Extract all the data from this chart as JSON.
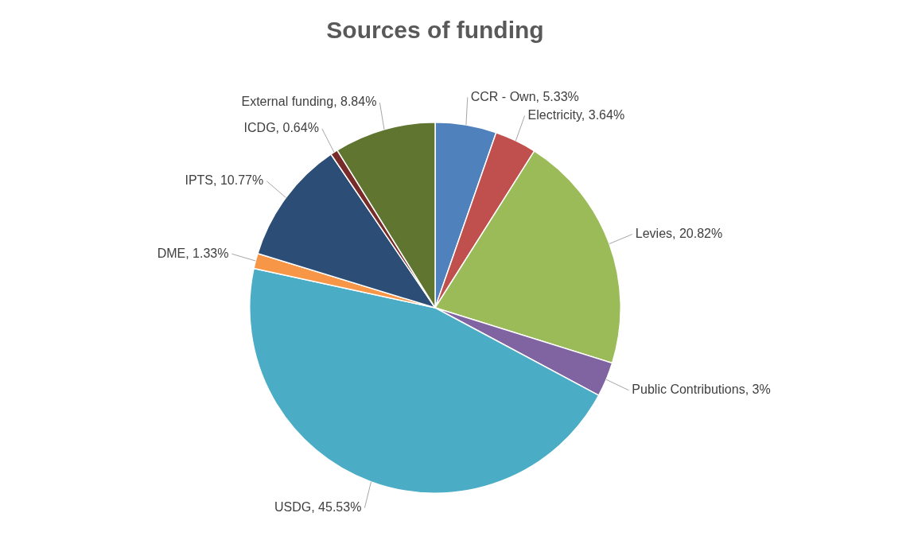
{
  "chart_data": {
    "type": "pie",
    "title": "Sources of funding",
    "categories": [
      "CCR - Own",
      "Electricity",
      "Levies",
      "Public Contributions",
      "USDG",
      "DME",
      "IPTS",
      "ICDG",
      "External funding"
    ],
    "values": [
      5.33,
      3.64,
      20.82,
      3,
      45.53,
      1.33,
      10.77,
      0.64,
      8.84
    ],
    "value_labels": [
      "5.33%",
      "3.64%",
      "20.82%",
      "3%",
      "45.53%",
      "1.33%",
      "10.77%",
      "0.64%",
      "8.84%"
    ],
    "colors": [
      "#4f81bd",
      "#c0504d",
      "#9bbb59",
      "#8064a2",
      "#4bacc6",
      "#f79646",
      "#2c4d75",
      "#772c2a",
      "#5f7530"
    ],
    "legend": false
  }
}
